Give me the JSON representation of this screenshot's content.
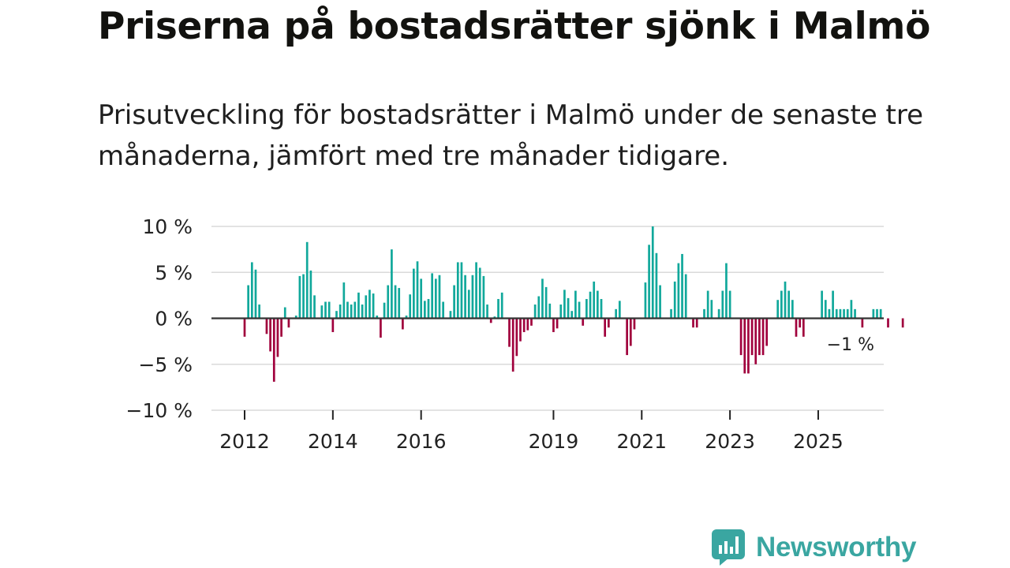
{
  "title": "Priserna på bostadsrätter sjönk i Malmö",
  "subtitle": "Prisutveckling för bostadsrätter i Malmö under de senaste tre månaderna, jämfört med tre månader tidigare.",
  "brand": {
    "name": "Newsworthy",
    "icon": "newsworthy-logo-icon"
  },
  "colors": {
    "positive": "#11a89b",
    "negative": "#a0003c",
    "grid": "#dadada",
    "zero": "#333333",
    "brand": "#3aa6a1"
  },
  "chart_data": {
    "type": "bar",
    "title": "Priserna på bostadsrätter sjönk i Malmö",
    "xlabel": "",
    "ylabel": "",
    "unit": "%",
    "ylim": [
      -10,
      10
    ],
    "yticks": [
      10,
      5,
      0,
      -5,
      -10
    ],
    "ytick_labels": [
      "10 %",
      "5 %",
      "0 %",
      "−5 %",
      "−10 %"
    ],
    "xticks": [
      {
        "label": "2012",
        "year": 2012
      },
      {
        "label": "2014",
        "year": 2014
      },
      {
        "label": "2016",
        "year": 2016
      },
      {
        "label": "2019",
        "year": 2019
      },
      {
        "label": "2021",
        "year": 2021
      },
      {
        "label": "2023",
        "year": 2023
      },
      {
        "label": "2025",
        "year": 2025
      }
    ],
    "annotation": {
      "text": "−1 %",
      "value": -1
    },
    "start": "2012-01",
    "frequency": "monthly",
    "values": [
      -2,
      3.6,
      6.1,
      5.3,
      1.5,
      0,
      -1.7,
      -3.6,
      -6.9,
      -4.2,
      -2,
      1.2,
      -1,
      0,
      0.3,
      4.6,
      4.8,
      8.3,
      5.2,
      2.5,
      0,
      1.4,
      1.8,
      1.8,
      -1.5,
      0.8,
      1.5,
      3.9,
      1.8,
      1.5,
      1.8,
      2.8,
      1.5,
      2.5,
      3.1,
      2.7,
      0.3,
      -2.1,
      1.7,
      3.6,
      7.5,
      3.6,
      3.3,
      -1.2,
      0.3,
      2.6,
      5.4,
      6.2,
      4.3,
      1.9,
      2.1,
      4.9,
      4.3,
      4.7,
      1.8,
      0,
      0.8,
      3.6,
      6.1,
      6.1,
      4.7,
      3.1,
      4.7,
      6.1,
      5.5,
      4.6,
      1.5,
      -0.5,
      0.2,
      2.1,
      2.8,
      0,
      -3.1,
      -5.8,
      -4.1,
      -2.5,
      -1.5,
      -1.3,
      -0.8,
      1.5,
      2.4,
      4.3,
      3.4,
      1.6,
      -1.5,
      -1.1,
      1.5,
      3.1,
      2.2,
      0.8,
      3,
      1.8,
      -0.8,
      2.1,
      2.9,
      4,
      3,
      2.1,
      -2,
      -1,
      0,
      1,
      1.9,
      0,
      -4,
      -3,
      -1.2,
      0,
      0,
      3.9,
      8,
      10,
      7.1,
      3.6,
      0,
      0,
      1,
      4,
      6,
      7,
      4.8,
      0,
      -1,
      -1,
      0,
      1,
      3,
      2,
      0,
      1,
      3,
      6,
      3,
      0,
      0,
      -4,
      -6,
      -6,
      -4,
      -5,
      -4,
      -4,
      -3,
      0,
      0,
      2,
      3,
      4,
      3,
      2,
      -2,
      -1,
      -2,
      0,
      0,
      0,
      0,
      3,
      2,
      1,
      3,
      1,
      1,
      1,
      1,
      2,
      1,
      0,
      -1,
      0,
      0,
      1,
      1,
      1,
      0,
      -1,
      0,
      0,
      0,
      -1
    ]
  }
}
